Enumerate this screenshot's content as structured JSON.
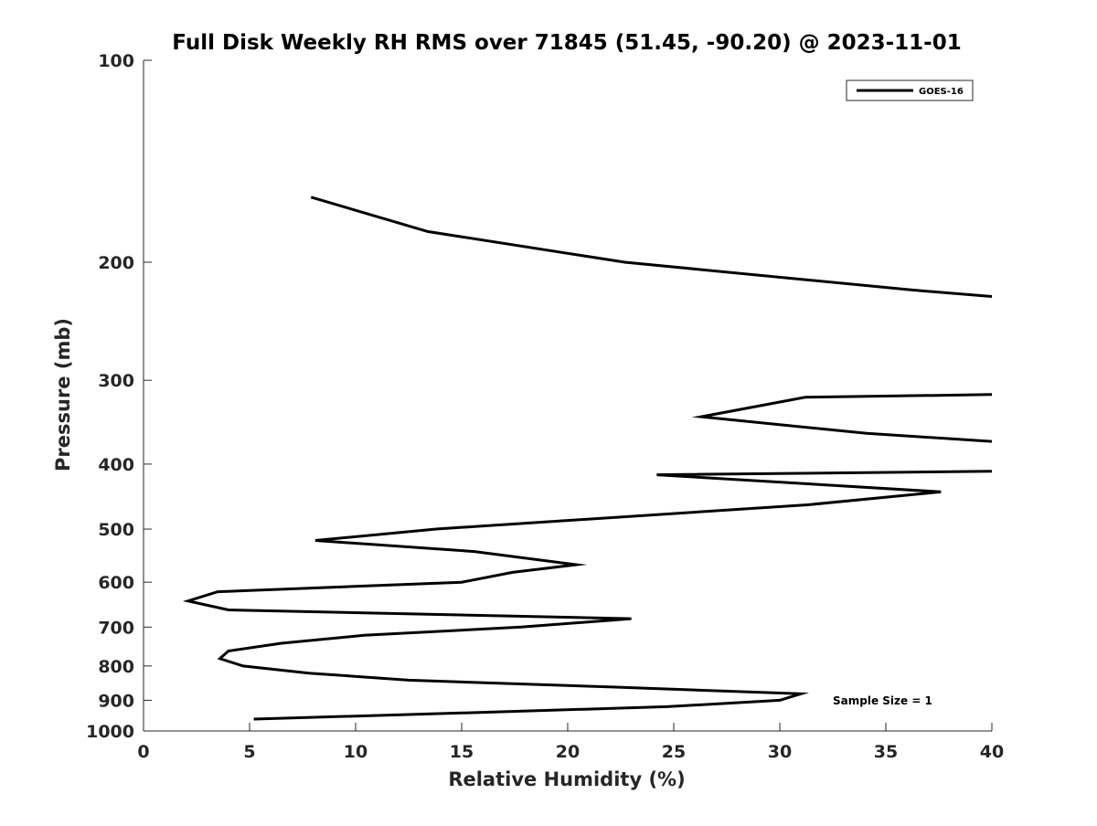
{
  "chart_data": {
    "type": "line",
    "title": "Full Disk Weekly RH RMS over 71845 (51.45, -90.20) @ 2023-11-01",
    "xlabel": "Relative Humidity (%)",
    "ylabel": "Pressure (mb)",
    "xlim": [
      0,
      40
    ],
    "ylim": [
      100,
      1000
    ],
    "y_scale": "log",
    "y_reversed": true,
    "grid": false,
    "legend_position": "top-right",
    "x_ticks": [
      0,
      5,
      10,
      15,
      20,
      25,
      30,
      35,
      40
    ],
    "x_tick_labels": [
      "0",
      "5",
      "10",
      "15",
      "20",
      "25",
      "30",
      "35",
      "40"
    ],
    "y_ticks": [
      100,
      200,
      300,
      400,
      500,
      600,
      700,
      800,
      900,
      1000
    ],
    "y_tick_labels": [
      "100",
      "200",
      "300",
      "400",
      "500",
      "600",
      "700",
      "800",
      "900",
      "1000"
    ],
    "annotation": "Sample Size = 1",
    "series": [
      {
        "name": "GOES-16",
        "color": "#000000",
        "segments": [
          [
            {
              "x": 7.9,
              "y": 160
            },
            {
              "x": 13.4,
              "y": 180
            },
            {
              "x": 22.7,
              "y": 200
            },
            {
              "x": 36.2,
              "y": 220
            },
            {
              "x": 40.0,
              "y": 225
            }
          ],
          [
            {
              "x": 40.0,
              "y": 315
            },
            {
              "x": 31.2,
              "y": 318
            },
            {
              "x": 26.3,
              "y": 340
            },
            {
              "x": 34.1,
              "y": 360
            },
            {
              "x": 40.0,
              "y": 370
            }
          ],
          [
            {
              "x": 40.0,
              "y": 410
            },
            {
              "x": 24.2,
              "y": 415
            },
            {
              "x": 37.6,
              "y": 440
            },
            {
              "x": 31.3,
              "y": 460
            },
            {
              "x": 13.8,
              "y": 500
            },
            {
              "x": 8.1,
              "y": 520
            },
            {
              "x": 15.6,
              "y": 540
            },
            {
              "x": 20.4,
              "y": 565
            },
            {
              "x": 17.4,
              "y": 580
            },
            {
              "x": 15.0,
              "y": 600
            },
            {
              "x": 3.5,
              "y": 620
            },
            {
              "x": 2.1,
              "y": 640
            },
            {
              "x": 4.0,
              "y": 660
            },
            {
              "x": 23.0,
              "y": 680
            },
            {
              "x": 17.8,
              "y": 700
            },
            {
              "x": 10.4,
              "y": 720
            },
            {
              "x": 6.5,
              "y": 740
            },
            {
              "x": 4.0,
              "y": 760
            },
            {
              "x": 3.6,
              "y": 780
            },
            {
              "x": 4.7,
              "y": 800
            },
            {
              "x": 7.8,
              "y": 820
            },
            {
              "x": 12.5,
              "y": 840
            },
            {
              "x": 22.1,
              "y": 860
            },
            {
              "x": 31.0,
              "y": 880
            },
            {
              "x": 30.0,
              "y": 900
            },
            {
              "x": 24.7,
              "y": 920
            },
            {
              "x": 15.0,
              "y": 940
            },
            {
              "x": 5.2,
              "y": 960
            }
          ]
        ]
      }
    ]
  }
}
